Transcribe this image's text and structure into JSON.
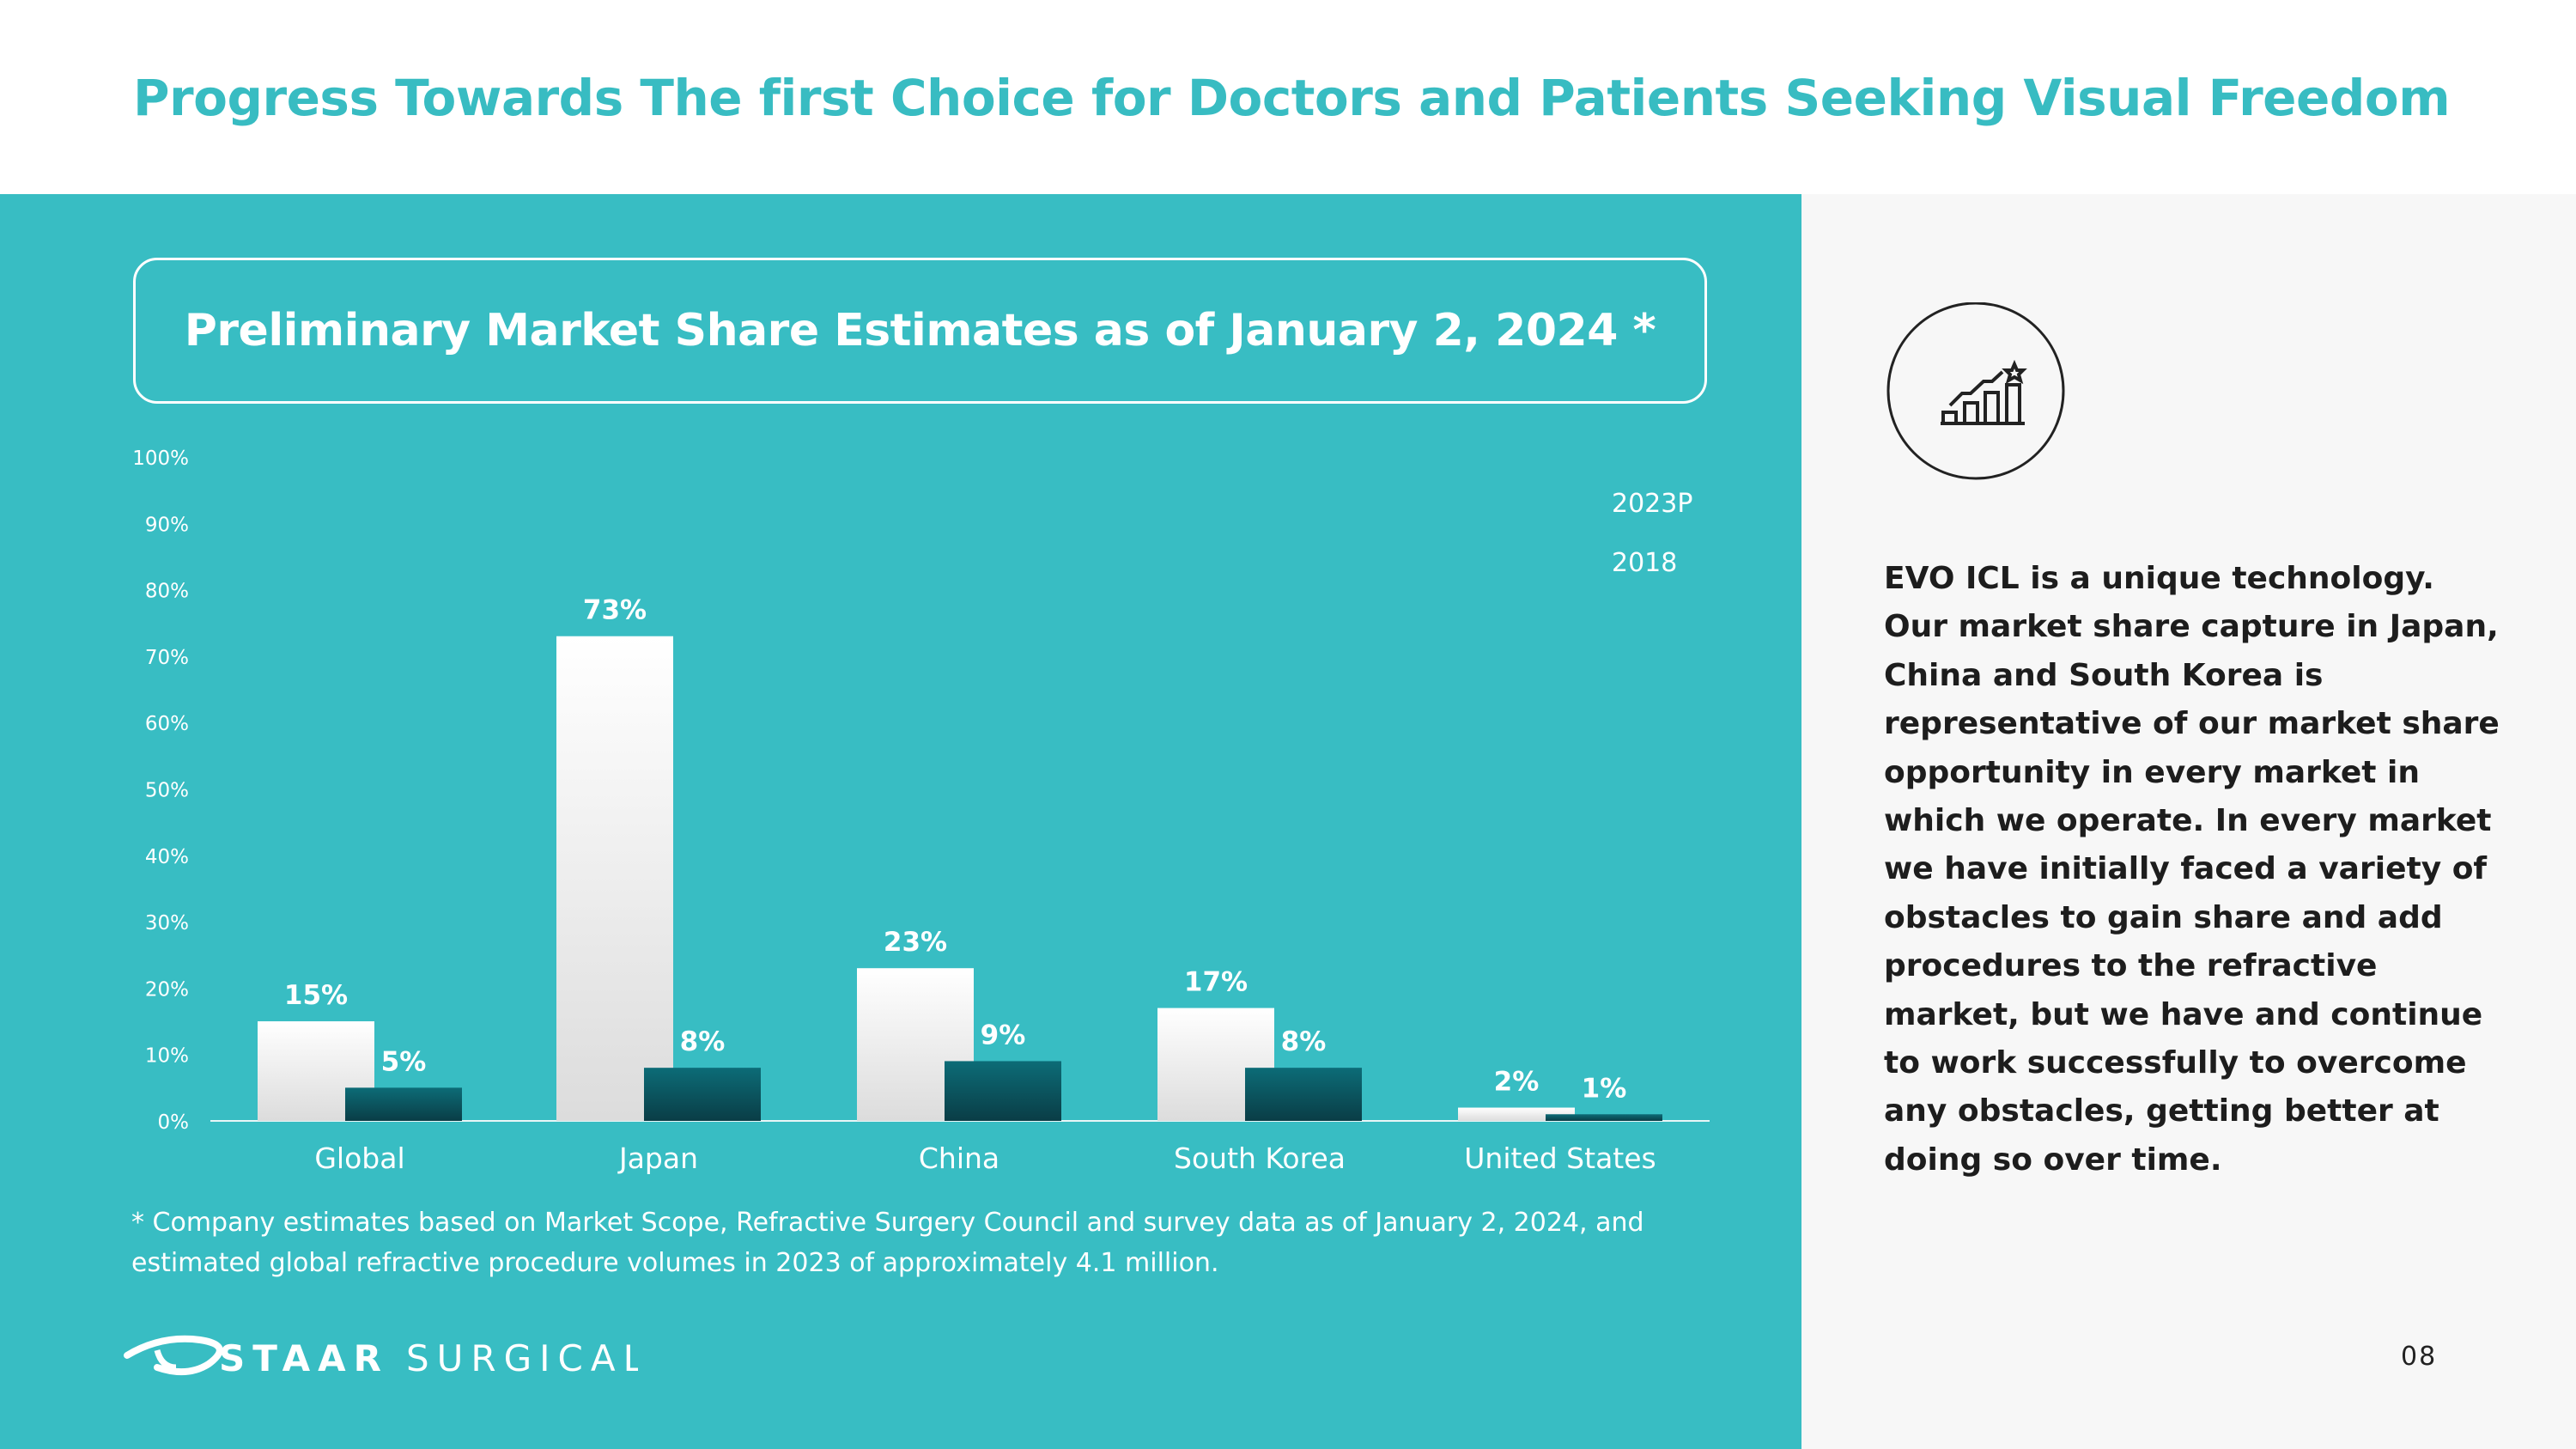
{
  "title": "Progress Towards The first Choice for Doctors and Patients Seeking Visual Freedom",
  "chart_data": {
    "type": "bar",
    "title": "Preliminary Market Share Estimates as of January 2, 2024 *",
    "categories": [
      "Global",
      "Japan",
      "China",
      "South Korea",
      "United States"
    ],
    "series": [
      {
        "name": "2023P",
        "values": [
          15,
          73,
          23,
          17,
          2
        ],
        "labels": [
          "15%",
          "73%",
          "23%",
          "17%",
          "2%"
        ],
        "color": "#ffffff"
      },
      {
        "name": "2018",
        "values": [
          5,
          8,
          9,
          8,
          1
        ],
        "labels": [
          "5%",
          "8%",
          "9%",
          "8%",
          "1%"
        ],
        "color": "#0e5560"
      }
    ],
    "yticks": [
      "0%",
      "10%",
      "20%",
      "30%",
      "40%",
      "50%",
      "60%",
      "70%",
      "80%",
      "90%",
      "100%"
    ],
    "ylim": [
      0,
      100
    ],
    "grid": false,
    "legend": "top-right"
  },
  "footnote": "* Company estimates based on Market Scope, Refractive Surgery Council and survey data as of January 2, 2024, and estimated global refractive procedure volumes in 2023 of approximately 4.1 million.",
  "logo": {
    "text": "STAARSURGICAL"
  },
  "side_text": "EVO ICL is a unique technology. Our market share capture in Japan, China and South Korea is representative of our market share opportunity in every market in which we operate. In every market we have initially faced a variety of obstacles to gain share and add procedures to the refractive market, but we have and continue to work successfully to overcome any obstacles, getting better at doing so over time.",
  "page_number": "08",
  "colors": {
    "teal": "#38bdc3",
    "dark_bar": "#0e5560",
    "title": "#38bcc2"
  },
  "icon": "growth-chart-star-icon"
}
